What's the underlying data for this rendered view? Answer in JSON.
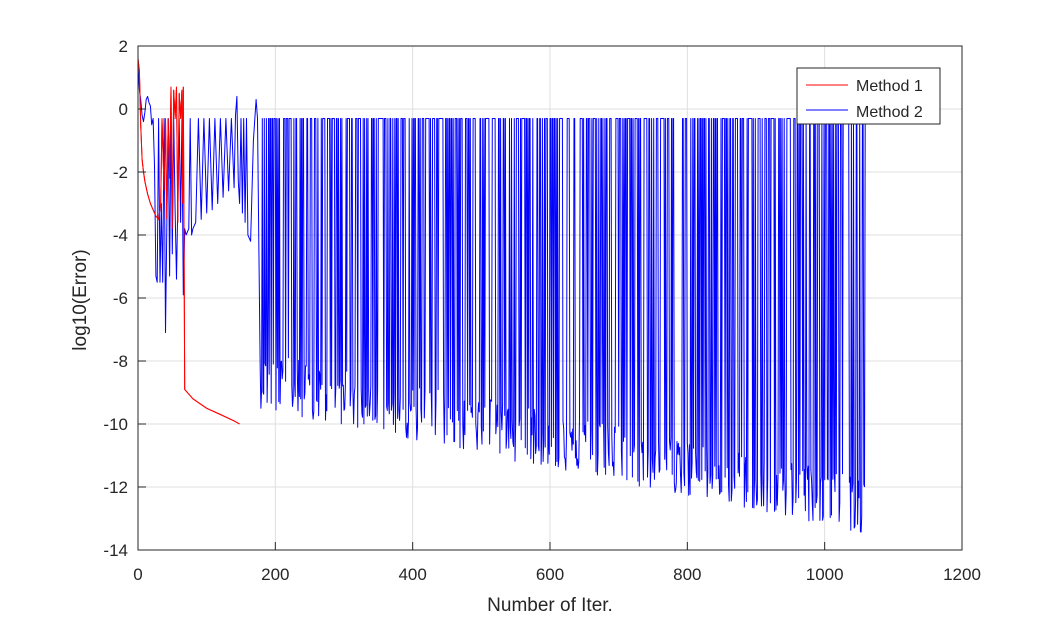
{
  "chart_data": {
    "type": "line",
    "title": "",
    "xlabel": "Number of Iter.",
    "ylabel": "log10(Error)",
    "xlim": [
      0,
      1200
    ],
    "ylim": [
      -14,
      2
    ],
    "xticks": [
      0,
      200,
      400,
      600,
      800,
      1000,
      1200
    ],
    "yticks": [
      -14,
      -12,
      -10,
      -8,
      -6,
      -4,
      -2,
      0,
      2
    ],
    "grid": true,
    "legend_position": "top-right",
    "series": [
      {
        "name": "Method 1",
        "color": "#ff0000",
        "x": [
          0,
          2,
          4,
          6,
          8,
          10,
          14,
          18,
          22,
          26,
          30,
          33,
          35,
          38,
          40,
          42,
          44,
          46,
          48,
          50,
          52,
          54,
          56,
          58,
          60,
          62,
          64,
          65,
          66,
          67,
          68,
          80,
          100,
          120,
          140,
          148
        ],
        "y": [
          1.6,
          1.2,
          -0.5,
          -1.6,
          -2.0,
          -2.3,
          -2.7,
          -3.0,
          -3.2,
          -3.4,
          -3.5,
          -3.0,
          -0.3,
          -2.6,
          -0.3,
          -3.5,
          -0.3,
          -2.2,
          0.7,
          -3.8,
          0.6,
          -0.3,
          0.7,
          -3.6,
          0.5,
          -0.3,
          0.6,
          -3.0,
          0.7,
          -4.0,
          -8.9,
          -9.2,
          -9.5,
          -9.7,
          -9.9,
          -10.0
        ]
      },
      {
        "name": "Method 2",
        "color": "#0000ff",
        "x": [
          0,
          2,
          4,
          6,
          8,
          10,
          12,
          14,
          16,
          18,
          20,
          22,
          24,
          26,
          28,
          30,
          32,
          34,
          36,
          38,
          40,
          42,
          44,
          46,
          48,
          50,
          52,
          54,
          56,
          58,
          60,
          62,
          64,
          66,
          68,
          70,
          72,
          74,
          76,
          78,
          80,
          84,
          88,
          92,
          96,
          100,
          104,
          108,
          112,
          116,
          120,
          124,
          128,
          132,
          136,
          140,
          142,
          144,
          146,
          148,
          150,
          152,
          154,
          156,
          158,
          160,
          164,
          168,
          172,
          174,
          176
        ],
        "y": [
          1.4,
          0.6,
          0.3,
          -0.2,
          -0.4,
          -0.1,
          0.3,
          0.4,
          0.2,
          0.1,
          -0.5,
          -0.3,
          -1.8,
          -5.3,
          -5.5,
          -0.3,
          -5.5,
          -3.0,
          -5.5,
          -0.3,
          -7.1,
          -3.8,
          -0.3,
          -5.3,
          -0.3,
          -4.6,
          -0.3,
          -3.2,
          -5.4,
          -3.0,
          -0.3,
          -3.6,
          -0.3,
          -5.9,
          -3.8,
          -4.0,
          -3.9,
          -3.8,
          -0.3,
          -4.0,
          -3.8,
          -3.6,
          -0.3,
          -3.5,
          -0.3,
          -3.3,
          -0.3,
          -3.2,
          -0.3,
          -3.0,
          -0.3,
          -2.8,
          -0.3,
          -2.6,
          -0.3,
          -2.5,
          -0.2,
          0.4,
          -2.3,
          -3.0,
          -0.3,
          -3.3,
          -0.3,
          -3.6,
          -0.3,
          -4.0,
          -4.2,
          -1.0,
          0.3,
          -0.3,
          -4.5
        ]
      }
    ]
  }
}
